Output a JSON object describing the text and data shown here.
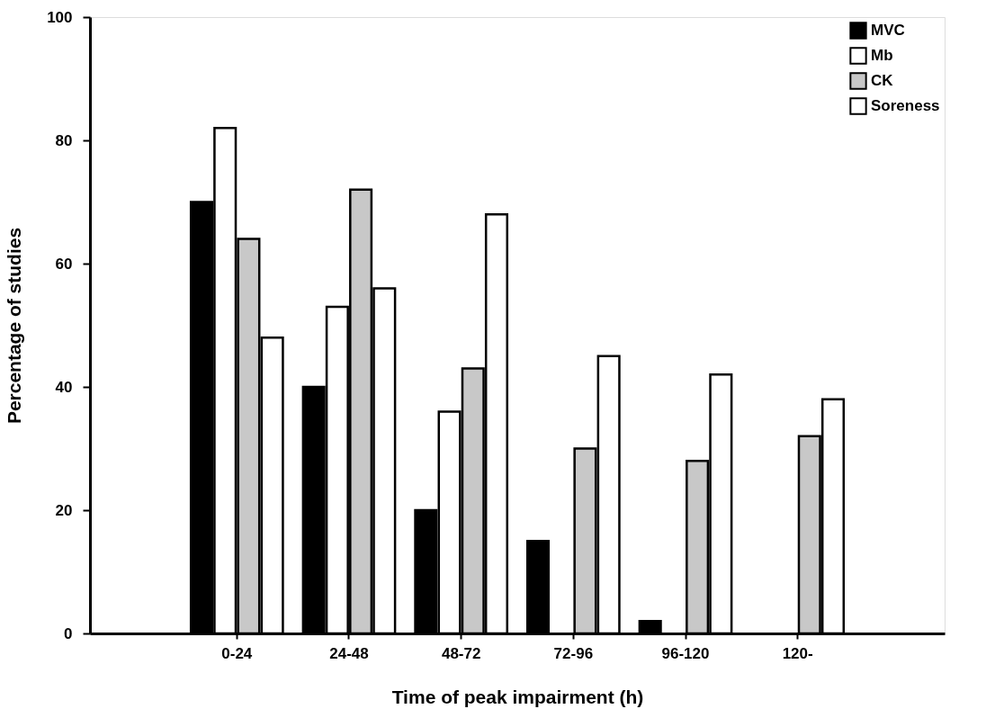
{
  "chart_data": {
    "type": "bar",
    "xlabel": "Time of peak impairment  (h)",
    "ylabel": "Percentage of studies",
    "categories": [
      "0-24",
      "24-48",
      "48-72",
      "72-96",
      "96-120",
      "120-"
    ],
    "series": [
      {
        "name": "MVC",
        "color": "#000000",
        "values": [
          70,
          40,
          20,
          15,
          2,
          null
        ]
      },
      {
        "name": "Mb",
        "color": "#ffffff",
        "values": [
          82,
          53,
          36,
          null,
          null,
          null
        ]
      },
      {
        "name": "CK",
        "color": "#c8c8c8",
        "values": [
          64,
          72,
          43,
          30,
          28,
          32
        ]
      },
      {
        "name": "Soreness",
        "color": "#ffffff",
        "values": [
          48,
          56,
          68,
          45,
          42,
          38
        ]
      }
    ],
    "ylim": [
      0,
      100
    ],
    "yticks": [
      0,
      20,
      40,
      60,
      80,
      100
    ],
    "grid": false,
    "legend": "top right"
  }
}
